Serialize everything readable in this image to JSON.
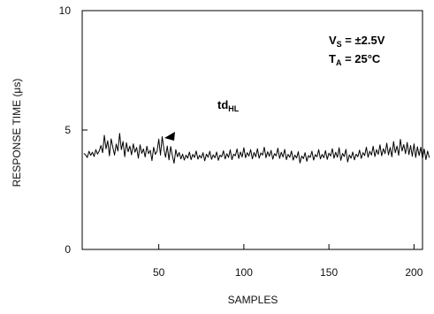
{
  "chart_data": {
    "type": "line",
    "xlabel": "SAMPLES",
    "ylabel": "RESPONSE TIME (μs)",
    "xlim": [
      5,
      205
    ],
    "ylim": [
      0,
      10
    ],
    "x_ticks": [
      50,
      100,
      150,
      200
    ],
    "y_ticks": [
      0,
      5,
      10
    ],
    "grid": false,
    "annotations": {
      "supply": {
        "var": "V",
        "sub": "S",
        "rest": " = ±2.5V"
      },
      "temp": {
        "var": "T",
        "sub": "A",
        "rest": " = 25°C"
      },
      "series_label": {
        "var": "td",
        "sub": "HL"
      }
    },
    "series": [
      {
        "x_start": 6,
        "x_step": 1,
        "values": [
          4.02,
          3.96,
          3.85,
          4.11,
          3.94,
          4.07,
          3.89,
          4.18,
          3.99,
          4.12,
          4.35,
          4.05,
          4.78,
          4.21,
          4.55,
          3.92,
          4.63,
          4.28,
          3.95,
          4.41,
          4.12,
          4.86,
          4.18,
          4.52,
          3.88,
          4.47,
          4.09,
          4.33,
          3.96,
          4.42,
          4.07,
          4.27,
          3.82,
          4.38,
          4.02,
          4.21,
          3.87,
          4.32,
          4.01,
          4.15,
          3.72,
          4.28,
          3.98,
          4.11,
          4.62,
          3.95,
          4.72,
          4.21,
          3.86,
          4.33,
          3.75,
          4.31,
          3.92,
          3.61,
          4.18,
          3.88,
          4.06,
          3.79,
          3.99,
          3.74,
          3.95,
          3.82,
          4.08,
          3.76,
          3.98,
          3.85,
          4.12,
          3.78,
          3.94,
          3.83,
          4.05,
          3.71,
          3.99,
          3.86,
          4.11,
          3.77,
          3.96,
          3.84,
          4.08,
          3.73,
          3.95,
          3.88,
          4.13,
          3.79,
          4.01,
          3.85,
          4.17,
          3.76,
          3.99,
          3.92,
          4.21,
          3.81,
          4.08,
          3.87,
          4.26,
          3.84,
          4.05,
          3.91,
          4.18,
          3.79,
          4.06,
          3.88,
          4.22,
          3.82,
          4.04,
          3.95,
          4.28,
          3.84,
          4.09,
          3.9,
          4.15,
          3.78,
          4.01,
          3.92,
          4.24,
          3.81,
          4.07,
          3.87,
          4.19,
          3.76,
          3.98,
          3.86,
          4.12,
          3.74,
          3.95,
          3.83,
          4.09,
          3.62,
          3.91,
          3.8,
          4.05,
          3.69,
          3.93,
          3.85,
          4.11,
          3.74,
          3.97,
          3.88,
          4.18,
          3.79,
          3.98,
          3.84,
          4.14,
          3.77,
          4.03,
          3.91,
          4.22,
          3.82,
          4.07,
          3.86,
          4.26,
          3.73,
          4.02,
          3.89,
          4.19,
          3.66,
          3.96,
          3.82,
          4.08,
          3.75,
          3.99,
          3.88,
          4.16,
          3.81,
          4.05,
          3.93,
          4.28,
          3.86,
          4.11,
          3.95,
          4.32,
          3.89,
          4.18,
          3.98,
          4.38,
          3.92,
          4.22,
          4.01,
          4.45,
          3.96,
          4.27,
          3.88,
          4.52,
          4.05,
          4.33,
          3.94,
          4.61,
          4.12,
          4.39,
          4.01,
          4.48,
          3.97,
          4.35,
          3.9,
          4.42,
          3.85,
          4.3,
          3.93,
          4.28,
          3.8,
          4.21,
          3.76,
          4.12,
          3.84
        ]
      }
    ]
  }
}
